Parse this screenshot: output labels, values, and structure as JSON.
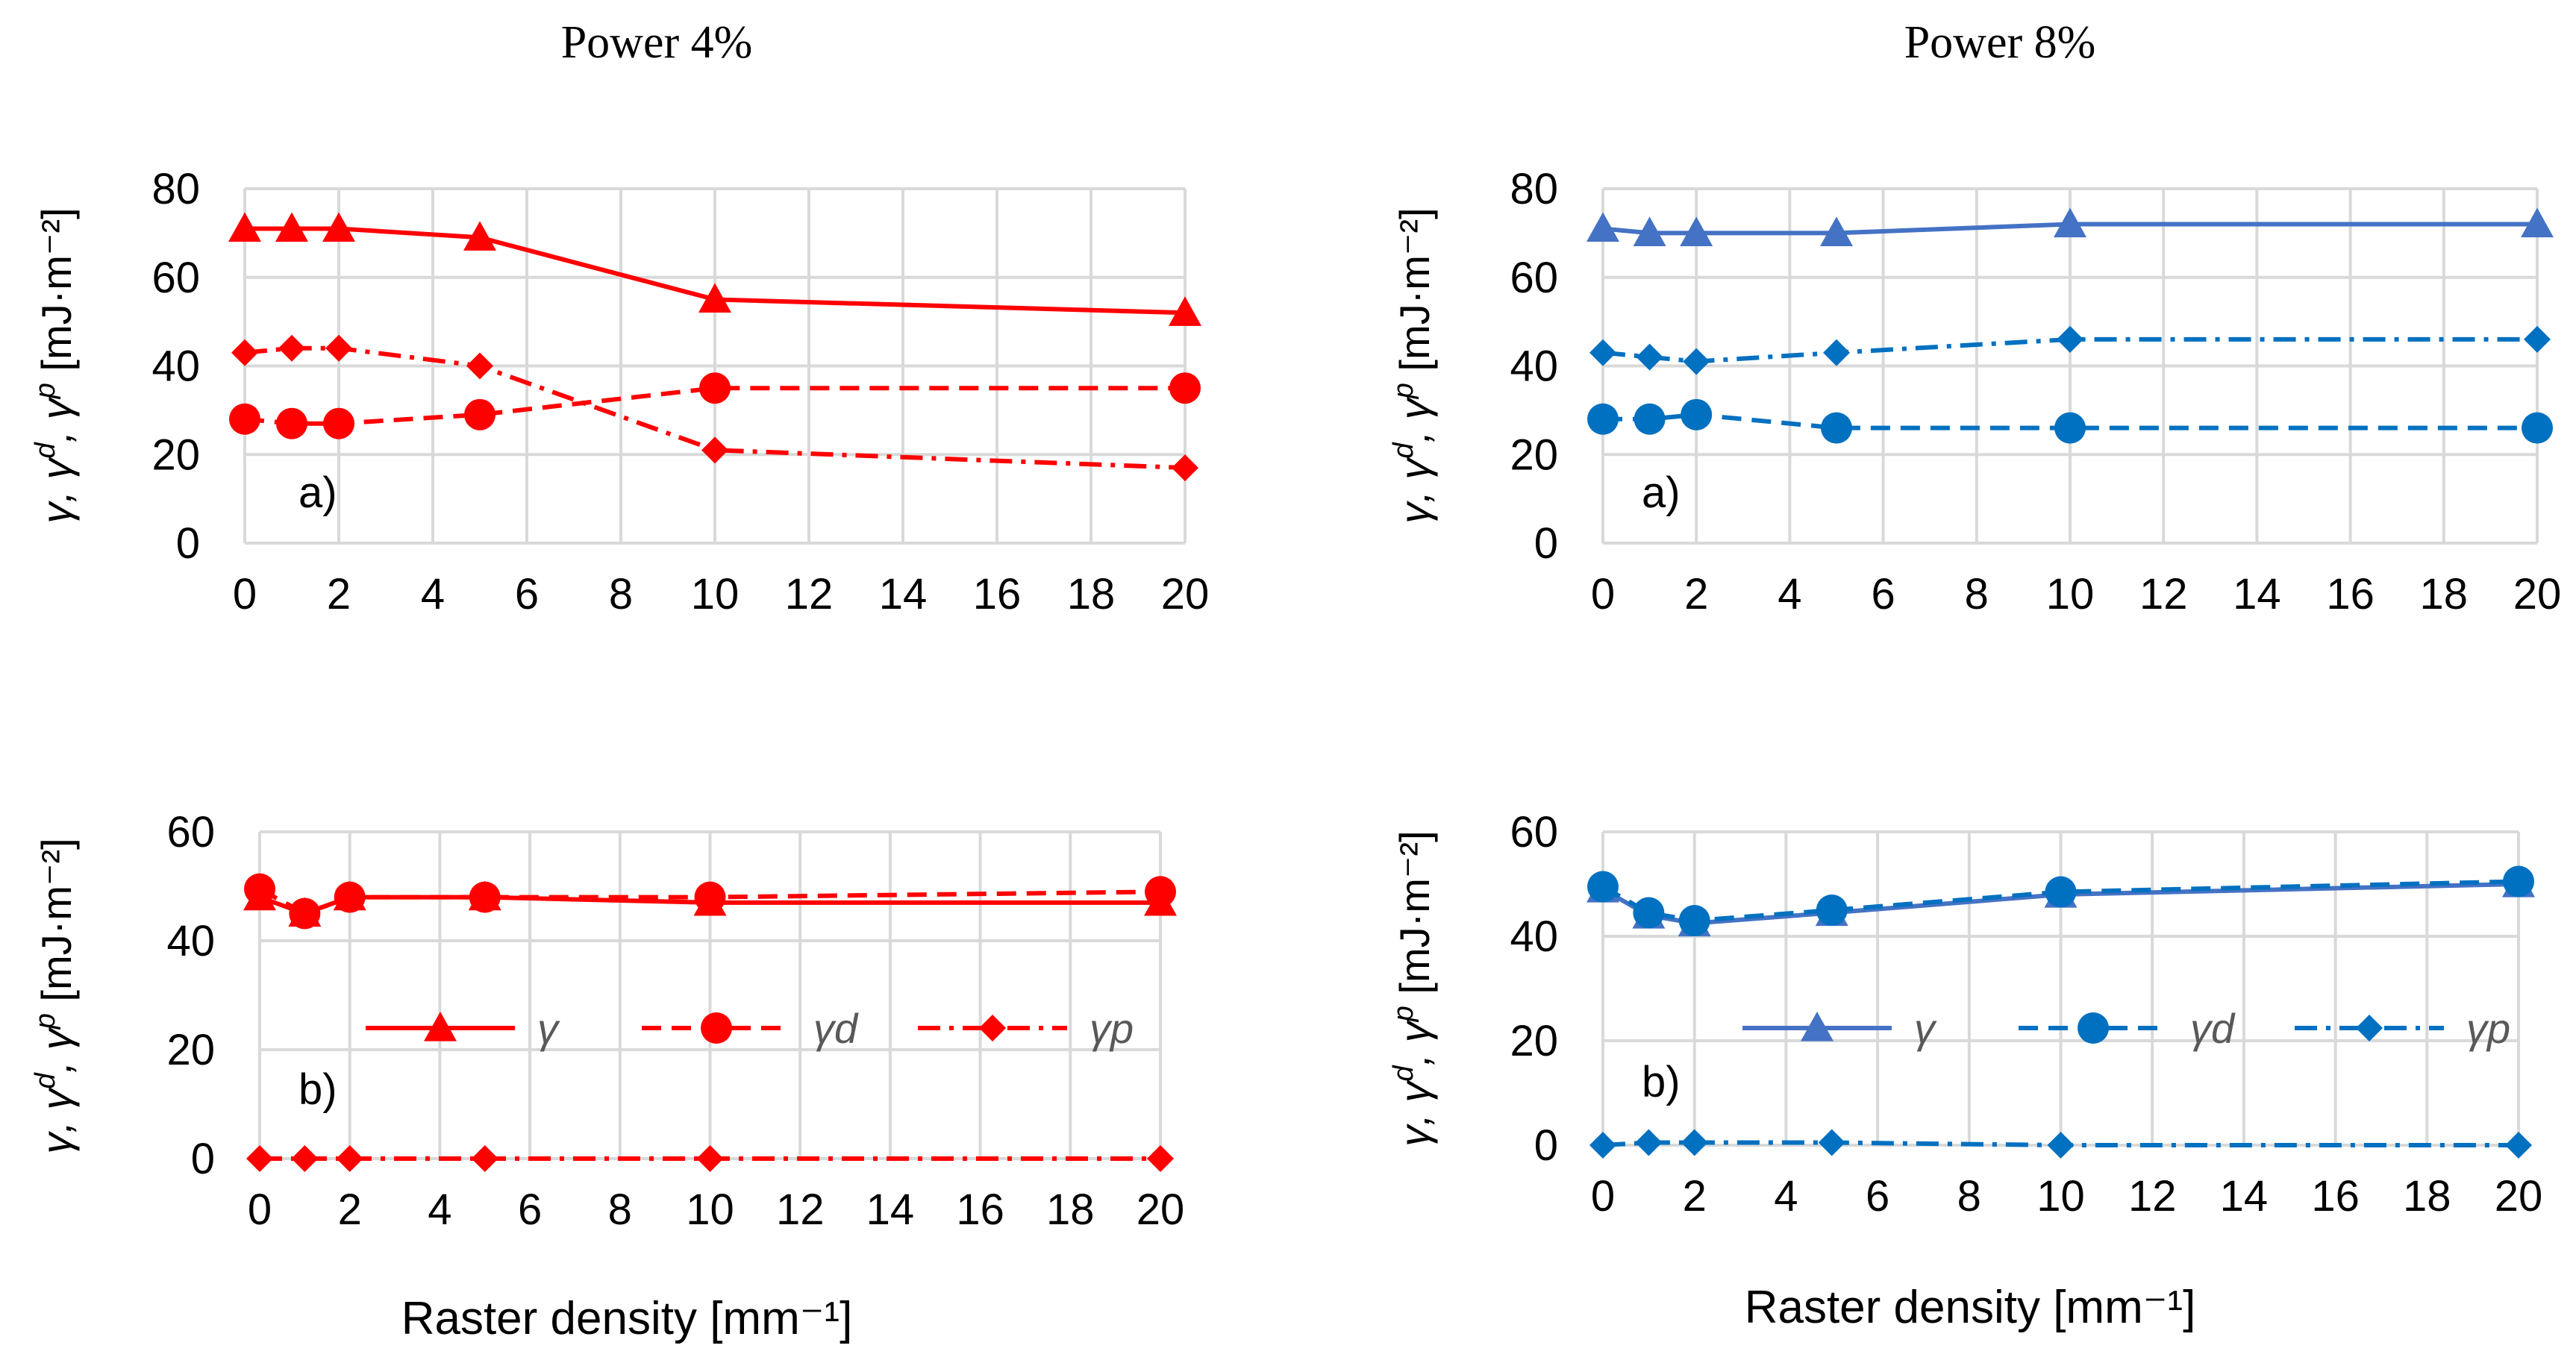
{
  "titles": {
    "left": "Power 4%",
    "right": "Power 8%"
  },
  "xlabel": "Raster density [mm⁻¹]",
  "ylabel_main": "γ, γ",
  "ylabel_d": "d",
  "ylabel_sep": ", γ",
  "ylabel_p": "p",
  "ylabel_unit": " [mJ·m⁻²]",
  "legend": {
    "gamma": "γ",
    "gamma_d": "γd",
    "gamma_p": "γp"
  },
  "colors": {
    "red": "#ff0000",
    "blue_dark": "#0070c0",
    "blue_light": "#4472c4",
    "grid": "#d9d9d9"
  },
  "chart_data": [
    {
      "id": "power4-a",
      "type": "line",
      "panel_label": "a)",
      "color": "red",
      "x": [
        0,
        1,
        2,
        5,
        10,
        20
      ],
      "xlim": [
        0,
        20
      ],
      "xticks": [
        0,
        2,
        4,
        6,
        8,
        10,
        12,
        14,
        16,
        18,
        20
      ],
      "ylim": [
        0,
        80
      ],
      "yticks": [
        0,
        20,
        40,
        60,
        80
      ],
      "series": [
        {
          "name": "γ",
          "values": [
            71,
            71,
            71,
            69,
            55,
            52
          ],
          "marker": "triangle",
          "dash": "solid"
        },
        {
          "name": "γd",
          "values": [
            28,
            27,
            27,
            29,
            35,
            35
          ],
          "marker": "circle",
          "dash": "dash"
        },
        {
          "name": "γp",
          "values": [
            43,
            44,
            44,
            40,
            21,
            17
          ],
          "marker": "diamond",
          "dash": "dashdot"
        }
      ]
    },
    {
      "id": "power8-a",
      "type": "line",
      "panel_label": "a)",
      "color": "blue",
      "x": [
        0,
        1,
        2,
        5,
        10,
        20
      ],
      "xlim": [
        0,
        20
      ],
      "xticks": [
        0,
        2,
        4,
        6,
        8,
        10,
        12,
        14,
        16,
        18,
        20
      ],
      "ylim": [
        0,
        80
      ],
      "yticks": [
        0,
        20,
        40,
        60,
        80
      ],
      "series": [
        {
          "name": "γ",
          "values": [
            71,
            70,
            70,
            70,
            72,
            72
          ],
          "marker": "triangle",
          "dash": "solid"
        },
        {
          "name": "γd",
          "values": [
            28,
            28,
            29,
            26,
            26,
            26
          ],
          "marker": "circle",
          "dash": "dash"
        },
        {
          "name": "γp",
          "values": [
            43,
            42,
            41,
            43,
            46,
            46
          ],
          "marker": "diamond",
          "dash": "dashdot"
        }
      ]
    },
    {
      "id": "power4-b",
      "type": "line",
      "panel_label": "b)",
      "color": "red",
      "x": [
        0,
        1,
        2,
        5,
        10,
        20
      ],
      "xlim": [
        0,
        20
      ],
      "xticks": [
        0,
        2,
        4,
        6,
        8,
        10,
        12,
        14,
        16,
        18,
        20
      ],
      "ylim": [
        0,
        60
      ],
      "yticks": [
        0,
        20,
        40,
        60
      ],
      "series": [
        {
          "name": "γ",
          "values": [
            48,
            45,
            48,
            48,
            47,
            47
          ],
          "marker": "triangle",
          "dash": "solid"
        },
        {
          "name": "γd",
          "values": [
            49.5,
            45,
            48,
            48,
            48,
            49
          ],
          "marker": "circle",
          "dash": "dash"
        },
        {
          "name": "γp",
          "values": [
            0,
            0,
            0,
            0,
            0,
            0
          ],
          "marker": "diamond",
          "dash": "dashdot"
        }
      ]
    },
    {
      "id": "power8-b",
      "type": "line",
      "panel_label": "b)",
      "color": "blue",
      "x": [
        0,
        1,
        2,
        5,
        10,
        20
      ],
      "xlim": [
        0,
        20
      ],
      "xticks": [
        0,
        2,
        4,
        6,
        8,
        10,
        12,
        14,
        16,
        18,
        20
      ],
      "ylim": [
        0,
        60
      ],
      "yticks": [
        0,
        20,
        40,
        60
      ],
      "series": [
        {
          "name": "γ",
          "values": [
            49,
            44,
            42.5,
            44.5,
            48,
            50
          ],
          "marker": "triangle",
          "dash": "solid"
        },
        {
          "name": "γd",
          "values": [
            49.5,
            44.5,
            43,
            45,
            48.5,
            50.5
          ],
          "marker": "circle",
          "dash": "dash"
        },
        {
          "name": "γp",
          "values": [
            0,
            0.5,
            0.5,
            0.5,
            0,
            0
          ],
          "marker": "diamond",
          "dash": "dashdot"
        }
      ]
    }
  ]
}
